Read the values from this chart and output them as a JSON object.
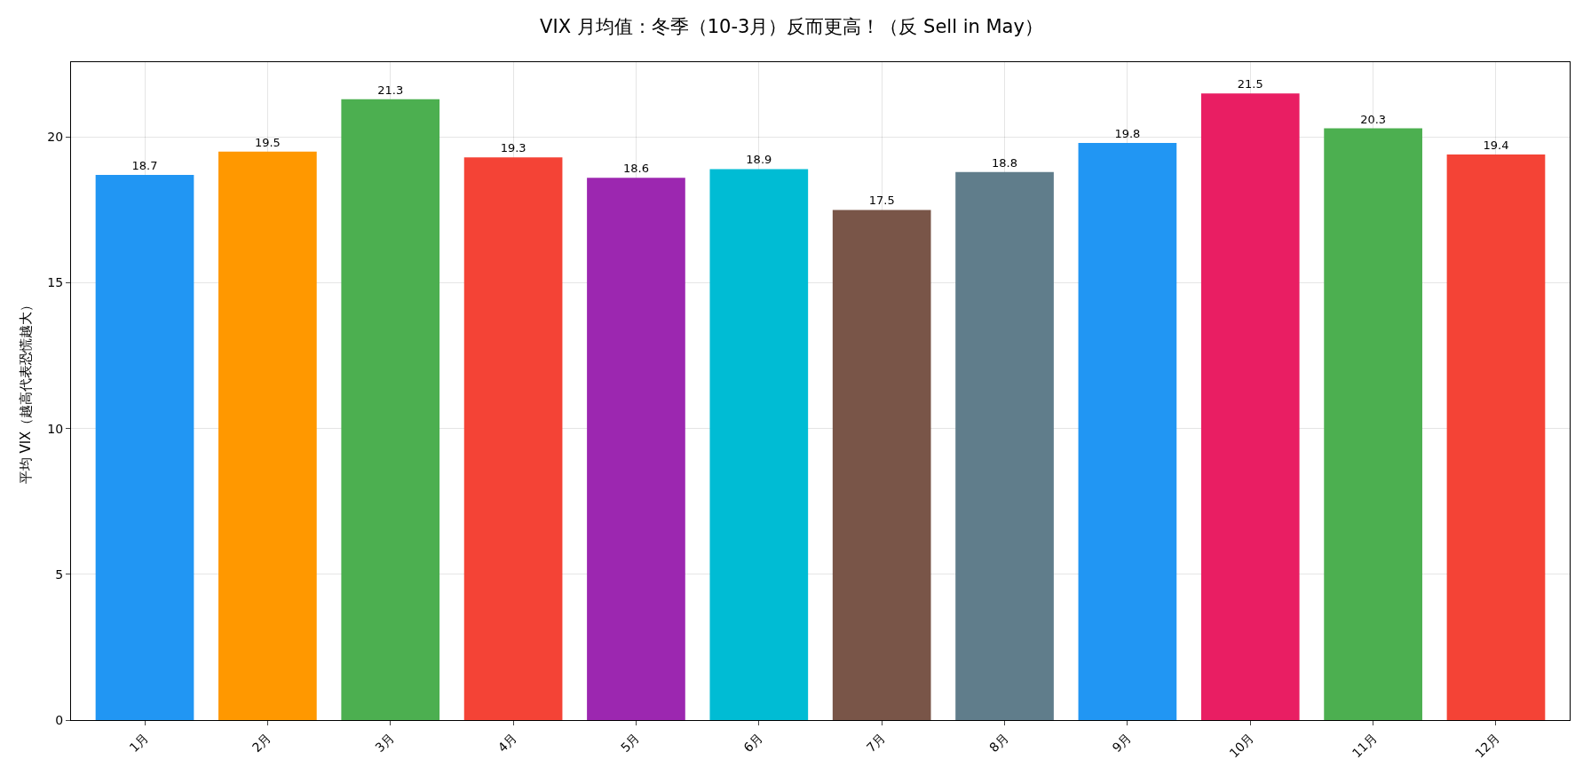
{
  "chart_data": {
    "type": "bar",
    "title": "VIX 月均值：冬季（10-3月）反而更高！（反 Sell in May）",
    "ylabel": "平均 VIX（越高代表恐慌越大）",
    "categories": [
      "1月",
      "2月",
      "3月",
      "4月",
      "5月",
      "6月",
      "7月",
      "8月",
      "9月",
      "10月",
      "11月",
      "12月"
    ],
    "values": [
      18.7,
      19.5,
      21.3,
      19.3,
      18.6,
      18.9,
      17.5,
      18.8,
      19.8,
      21.5,
      20.3,
      19.4
    ],
    "colors": [
      "#2196f3",
      "#ff9800",
      "#4caf50",
      "#f44336",
      "#9c27b0",
      "#00bcd4",
      "#795548",
      "#607d8b",
      "#2196f3",
      "#e91e63",
      "#4caf50",
      "#f44336"
    ],
    "ylim": [
      0,
      22.57
    ],
    "yticks": [
      0,
      5,
      10,
      15,
      20
    ],
    "grid": true,
    "data_labels": true
  }
}
